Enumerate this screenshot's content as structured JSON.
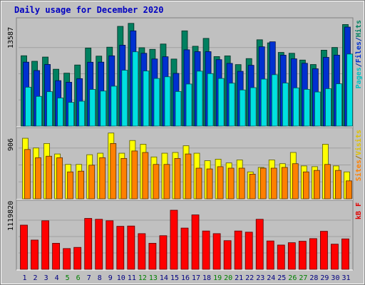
{
  "chart_data": [
    {
      "type": "bar",
      "title": "Daily usage for December 2020",
      "ytick_label": "13587",
      "ylim": [
        0,
        13587
      ],
      "right_labels": [
        {
          "text": "Pages",
          "color": "#00c0c0"
        },
        {
          "text": "/",
          "color": "#0030a0"
        },
        {
          "text": "Files",
          "color": "#0030d0"
        },
        {
          "text": "/",
          "color": "#0030a0"
        },
        {
          "text": "Hits",
          "color": "#008060"
        }
      ],
      "series": [
        {
          "name": "Hits",
          "color": "#008060",
          "values": [
            9130,
            8410,
            8960,
            7380,
            6870,
            7930,
            10130,
            9080,
            10240,
            12940,
            13330,
            10170,
            9960,
            10650,
            8700,
            12360,
            10360,
            11380,
            9020,
            9110,
            7980,
            8760,
            11200,
            10800,
            9560,
            9450,
            8570,
            7990,
            9850,
            10200,
            13180
          ]
        },
        {
          "name": "Files",
          "color": "#0030d0",
          "values": [
            8300,
            7210,
            8000,
            5900,
            5690,
            6160,
            8290,
            8300,
            9120,
            10500,
            12360,
            9450,
            8710,
            9000,
            6840,
            9900,
            9660,
            9660,
            8620,
            8140,
            7110,
            7890,
            10290,
            10940,
            9200,
            8730,
            8150,
            7440,
            8920,
            9210,
            12850
          ]
        },
        {
          "name": "Pages",
          "color": "#00e0e0",
          "values": [
            5050,
            3860,
            4470,
            3650,
            3080,
            3230,
            4760,
            4550,
            5180,
            7250,
            9640,
            7150,
            6180,
            6400,
            4490,
            5460,
            7130,
            6810,
            6180,
            5570,
            4690,
            4990,
            6100,
            6670,
            5590,
            4960,
            4770,
            4430,
            4860,
            5490,
            9350
          ]
        }
      ]
    },
    {
      "type": "bar",
      "ytick_label": "906",
      "ylim": [
        0,
        906
      ],
      "right_labels": [
        {
          "text": "Sites",
          "color": "#ff8000"
        },
        {
          "text": "/",
          "color": "#a07000"
        },
        {
          "text": "Visits",
          "color": "#e0c000"
        }
      ],
      "series": [
        {
          "name": "Visits",
          "color": "#ffff00",
          "values": [
            810,
            680,
            740,
            600,
            460,
            460,
            590,
            610,
            880,
            610,
            780,
            730,
            560,
            610,
            620,
            710,
            610,
            510,
            530,
            480,
            520,
            360,
            420,
            520,
            470,
            620,
            440,
            430,
            730,
            440,
            360
          ]
        },
        {
          "name": "Sites",
          "color": "#ff8000",
          "values": [
            660,
            550,
            570,
            550,
            360,
            370,
            450,
            550,
            740,
            540,
            640,
            620,
            460,
            460,
            540,
            600,
            410,
            400,
            430,
            410,
            410,
            330,
            410,
            410,
            420,
            470,
            360,
            380,
            460,
            380,
            240
          ]
        }
      ]
    },
    {
      "type": "bar",
      "ytick_label": "1119820",
      "ylim": [
        0,
        1119820
      ],
      "right_labels": [
        {
          "text": "kB F",
          "color": "#e00000"
        }
      ],
      "series": [
        {
          "name": "kB F",
          "color": "#ff0000",
          "values": [
            755000,
            500000,
            830000,
            445000,
            355000,
            375000,
            870000,
            855000,
            830000,
            735000,
            740000,
            610000,
            445000,
            575000,
            1010000,
            705000,
            930000,
            655000,
            610000,
            490000,
            655000,
            635000,
            855000,
            485000,
            415000,
            455000,
            480000,
            525000,
            650000,
            430000,
            520000
          ]
        }
      ]
    }
  ],
  "x_labels": [
    "1",
    "2",
    "3",
    "4",
    "5",
    "6",
    "7",
    "8",
    "9",
    "10",
    "11",
    "12",
    "13",
    "14",
    "15",
    "16",
    "17",
    "18",
    "19",
    "20",
    "21",
    "22",
    "23",
    "24",
    "25",
    "26",
    "27",
    "28",
    "29",
    "30",
    "31"
  ],
  "weekend_days": [
    5,
    6,
    12,
    13,
    19,
    20,
    26,
    27
  ],
  "colors": {
    "background": "#c0c0c0",
    "plot_bg": "#c0c0c0",
    "title": "#0000c0",
    "weekday_label": "#000080",
    "weekend_label": "#008000",
    "axis_text": "#000000"
  }
}
